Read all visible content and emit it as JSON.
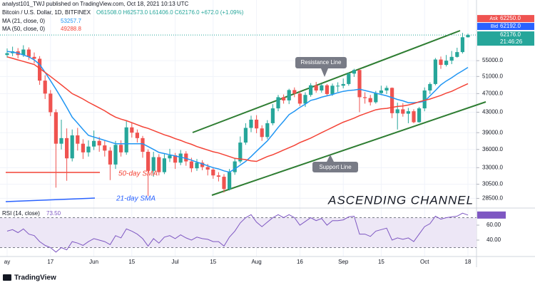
{
  "header": {
    "publisher": "analyst101_TWJ published on TradingView.com, Oct 18, 2021 10:13 UTC",
    "footer": "TradingView"
  },
  "chart_data": {
    "type": "candlestick",
    "title": "Bitcoin / U.S. Dollar, 1D, BITFINEX",
    "ohlc_text": "O61508.0 H62573.0 L61406.0 C62176.0 +672.0 (+1.09%)",
    "categories": [
      "ay",
      null,
      null,
      null,
      null,
      null,
      null,
      null,
      "17",
      null,
      null,
      null,
      null,
      null,
      null,
      null,
      "Jun",
      null,
      null,
      null,
      null,
      null,
      null,
      "15",
      null,
      null,
      null,
      null,
      null,
      null,
      null,
      "Jul",
      null,
      null,
      null,
      null,
      null,
      null,
      "15",
      null,
      null,
      null,
      null,
      null,
      null,
      null,
      "Aug",
      null,
      null,
      null,
      null,
      null,
      null,
      null,
      "16",
      null,
      null,
      null,
      null,
      null,
      null,
      null,
      "Sep",
      null,
      null,
      null,
      null,
      null,
      null,
      "15",
      null,
      null,
      null,
      null,
      null,
      null,
      null,
      "Oct",
      null,
      null,
      null,
      null,
      null,
      null,
      null,
      "18"
    ],
    "open": [
      56500,
      57000,
      57500,
      56500,
      58000,
      56000,
      55500,
      50000,
      47000,
      43000,
      37000,
      38000,
      34500,
      38500,
      37000,
      35500,
      36500,
      37500,
      36700,
      35800,
      33500,
      36800,
      35500,
      40000,
      39000,
      38000,
      35600,
      32500,
      34700,
      32300,
      34500,
      35000,
      33800,
      35300,
      34000,
      32900,
      33800,
      33100,
      32700,
      31800,
      31600,
      29800,
      32300,
      34000,
      37200,
      39900,
      41500,
      39800,
      38200,
      40800,
      43800,
      46200,
      45500,
      47800,
      47000,
      44800,
      46700,
      48900,
      47700,
      48900,
      46900,
      48800,
      48800,
      49200,
      51700,
      52600,
      46200,
      46000,
      45100,
      47100,
      47700,
      48300,
      42800,
      43600,
      42700,
      43200,
      41000,
      43800,
      47700,
      49200,
      55300,
      53900,
      55000,
      56000,
      57300,
      61508
    ],
    "high": [
      58300,
      58800,
      58400,
      59200,
      58600,
      57200,
      56200,
      51300,
      47800,
      43600,
      41500,
      39800,
      39600,
      39900,
      37800,
      37600,
      39400,
      38200,
      37500,
      36400,
      37500,
      37600,
      41200,
      40900,
      39600,
      38400,
      36000,
      35600,
      35200,
      35300,
      36100,
      35400,
      35900,
      35700,
      34600,
      34400,
      34200,
      33600,
      33100,
      32300,
      32000,
      32800,
      34500,
      38300,
      40800,
      42300,
      42400,
      40400,
      41400,
      44700,
      46700,
      46800,
      48100,
      48400,
      47500,
      47300,
      49400,
      49700,
      49300,
      49200,
      49300,
      49600,
      50500,
      52000,
      52900,
      52800,
      47300,
      46700,
      47600,
      48800,
      48800,
      48400,
      45000,
      44900,
      43900,
      43600,
      44100,
      48400,
      49600,
      55700,
      56100,
      56500,
      57600,
      58500,
      62800,
      62573
    ],
    "low": [
      55800,
      56200,
      55600,
      56000,
      55200,
      54300,
      49000,
      45800,
      42200,
      30000,
      36000,
      31000,
      34000,
      35800,
      34400,
      34800,
      35900,
      35600,
      34800,
      31100,
      32800,
      34800,
      35100,
      38100,
      37200,
      34600,
      28800,
      31600,
      31800,
      32000,
      33900,
      32800,
      33400,
      33300,
      32300,
      32500,
      32600,
      31800,
      31300,
      30900,
      29300,
      29600,
      31900,
      33700,
      36800,
      39100,
      38900,
      37500,
      37800,
      40400,
      43200,
      44800,
      44700,
      46200,
      44300,
      44100,
      46300,
      47200,
      47200,
      46400,
      46500,
      47400,
      48200,
      48800,
      50900,
      43000,
      44800,
      44400,
      44800,
      46700,
      46900,
      41800,
      39600,
      42100,
      40800,
      40800,
      40900,
      43200,
      46900,
      48900,
      52900,
      53500,
      54100,
      55800,
      56900,
      61406
    ],
    "close": [
      57000,
      57500,
      56500,
      58000,
      56000,
      55500,
      50000,
      47000,
      43000,
      37000,
      38000,
      34500,
      38500,
      37000,
      35500,
      36500,
      37500,
      36700,
      35800,
      33500,
      36800,
      35500,
      40000,
      39000,
      38000,
      35600,
      32500,
      34700,
      32300,
      34500,
      35000,
      33800,
      35300,
      34000,
      32900,
      33800,
      33100,
      32700,
      31800,
      31600,
      29800,
      32300,
      34000,
      37200,
      39900,
      41500,
      39800,
      38200,
      40800,
      43800,
      46200,
      45500,
      47800,
      47000,
      44800,
      46700,
      48900,
      47700,
      48900,
      46900,
      48800,
      48800,
      49200,
      51700,
      52600,
      46200,
      46000,
      45100,
      47100,
      47700,
      48300,
      42800,
      43600,
      42700,
      43200,
      41000,
      43800,
      47700,
      49200,
      55300,
      53900,
      55000,
      56000,
      57300,
      61500,
      62176
    ],
    "up_color": "#26a69a",
    "down_color": "#ef5350",
    "log_scale": true,
    "grid": true,
    "ylim": [
      27400,
      71500
    ],
    "yticks": [
      {
        "value": 55000,
        "label": "55000.0"
      },
      {
        "value": 51000,
        "label": "51000.0"
      },
      {
        "value": 47000,
        "label": "47000.0"
      },
      {
        "value": 43000,
        "label": "43000.0"
      },
      {
        "value": 39000,
        "label": "39000.0"
      },
      {
        "value": 36000,
        "label": "36000.0"
      },
      {
        "value": 33000,
        "label": "33000.0"
      },
      {
        "value": 30500,
        "label": "30500.0"
      },
      {
        "value": 28500,
        "label": "28500.0"
      }
    ],
    "series": [
      {
        "name": "MA (21, close, 0)",
        "color": "#2196f3",
        "values": [
          57500,
          57300,
          57000,
          56500,
          56000,
          55200,
          54000,
          52000,
          50000,
          48000,
          46000,
          44000,
          42000,
          40800,
          39600,
          38500,
          38200,
          37900,
          37600,
          37300,
          37000,
          37000,
          37000,
          37000,
          37000,
          37000,
          36500,
          36000,
          35500,
          35300,
          35100,
          34900,
          34700,
          34500,
          34200,
          33900,
          33600,
          33300,
          33000,
          32800,
          32500,
          32300,
          32800,
          33400,
          34000,
          34800,
          35700,
          36600,
          37500,
          38700,
          40000,
          41200,
          42500,
          43200,
          44000,
          44700,
          45500,
          45800,
          46200,
          46500,
          46800,
          47200,
          47500,
          47700,
          47800,
          48000,
          47700,
          47400,
          47100,
          46800,
          46500,
          46100,
          45700,
          45400,
          45000,
          45000,
          45100,
          45300,
          46500,
          47700,
          49000,
          49900,
          50700,
          51600,
          52400,
          53257.7
        ]
      },
      {
        "name": "MA (50, close, 0)",
        "color": "#f44336",
        "values": [
          56000,
          55600,
          55200,
          54800,
          54400,
          54000,
          53000,
          52000,
          51000,
          50000,
          49000,
          48000,
          47000,
          46400,
          45800,
          45100,
          44500,
          43900,
          43300,
          42600,
          42000,
          41600,
          41300,
          40900,
          40500,
          40100,
          39800,
          39400,
          39000,
          38600,
          38300,
          37900,
          37600,
          37200,
          36900,
          36500,
          36200,
          35900,
          35600,
          35400,
          35100,
          34800,
          34500,
          34400,
          34300,
          34100,
          34000,
          34400,
          34800,
          35100,
          35500,
          35900,
          36300,
          36700,
          37200,
          37600,
          38000,
          38500,
          39000,
          39500,
          40000,
          40500,
          41000,
          41400,
          41800,
          42300,
          42700,
          43100,
          43500,
          43700,
          43800,
          44000,
          44200,
          44300,
          44500,
          44800,
          45200,
          45500,
          45800,
          46200,
          46600,
          47100,
          47500,
          48100,
          48700,
          49288.8
        ]
      }
    ],
    "last_price": {
      "value": 62176,
      "label": "62176.0",
      "countdown": "21:46:26",
      "color": "#26a69a"
    },
    "ask": {
      "name": "Ask",
      "value": 62250,
      "label": "62250.0",
      "color": "#ef5350"
    },
    "bid": {
      "name": "Bid",
      "value": 62192,
      "label": "62192.0",
      "color": "#2962ff"
    },
    "annotations": [
      "Resistance Line",
      "Support Line",
      "ASCENDING CHANNEL",
      "50-day SMA",
      "21-day SMA"
    ],
    "rsi": {
      "name": "RSI (14, close)",
      "color": "#7e57c2",
      "last_label": "73.50",
      "band_color": "#ede7f6",
      "ylim": [
        20,
        80
      ],
      "band": [
        30,
        70
      ],
      "yticks": [
        {
          "value": 60,
          "label": "60.00"
        },
        {
          "value": 40,
          "label": "40.00"
        }
      ],
      "values": [
        52,
        54,
        50,
        55,
        48,
        46,
        38,
        33,
        30,
        24,
        30,
        27,
        38,
        36,
        33,
        38,
        42,
        40,
        38,
        34,
        46,
        43,
        55,
        52,
        48,
        42,
        32,
        42,
        36,
        44,
        46,
        42,
        47,
        43,
        40,
        44,
        42,
        41,
        38,
        38,
        32,
        44,
        52,
        63,
        70,
        74,
        64,
        58,
        64,
        70,
        74,
        70,
        74,
        70,
        60,
        65,
        70,
        66,
        69,
        60,
        66,
        66,
        67,
        71,
        72,
        48,
        48,
        45,
        52,
        54,
        56,
        40,
        43,
        41,
        43,
        38,
        48,
        58,
        62,
        72,
        68,
        70,
        71,
        72,
        76,
        73.5
      ]
    }
  }
}
